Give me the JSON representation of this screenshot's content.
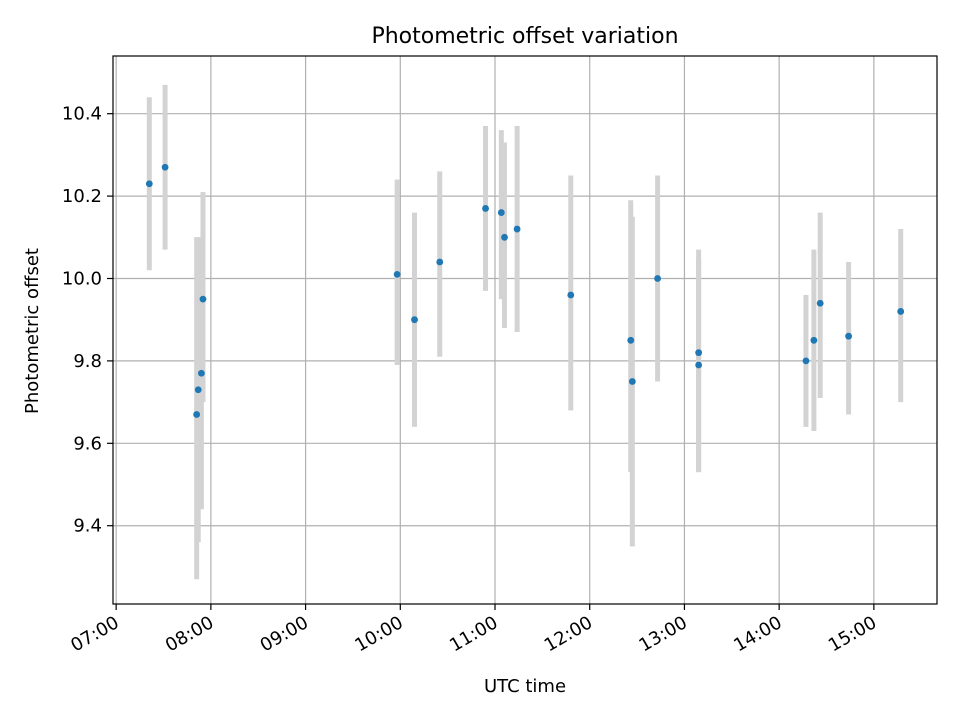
{
  "chart_data": {
    "type": "scatter",
    "title": "Photometric offset variation",
    "xlabel": "UTC time",
    "ylabel": "Photometric offset",
    "x_ticks": [
      "07:00",
      "08:00",
      "09:00",
      "10:00",
      "11:00",
      "12:00",
      "13:00",
      "14:00",
      "15:00"
    ],
    "xlim": [
      "06:58",
      "15:40"
    ],
    "y_ticks": [
      9.4,
      9.6,
      9.8,
      10.0,
      10.2,
      10.4
    ],
    "ylim": [
      9.21,
      10.54
    ],
    "grid": true,
    "colors": {
      "point": "#1f77b4",
      "errorbar": "#d3d3d3"
    },
    "points": [
      {
        "x": "07:21",
        "y": 10.23,
        "ylo": 10.02,
        "yhi": 10.44
      },
      {
        "x": "07:31",
        "y": 10.27,
        "ylo": 10.07,
        "yhi": 10.47
      },
      {
        "x": "07:51",
        "y": 9.67,
        "ylo": 9.27,
        "yhi": 10.1
      },
      {
        "x": "07:52",
        "y": 9.73,
        "ylo": 9.36,
        "yhi": 10.1
      },
      {
        "x": "07:54",
        "y": 9.77,
        "ylo": 9.44,
        "yhi": 10.1
      },
      {
        "x": "07:55",
        "y": 9.95,
        "ylo": 9.7,
        "yhi": 10.21
      },
      {
        "x": "09:58",
        "y": 10.01,
        "ylo": 9.79,
        "yhi": 10.24
      },
      {
        "x": "10:09",
        "y": 9.9,
        "ylo": 9.64,
        "yhi": 10.16
      },
      {
        "x": "10:25",
        "y": 10.04,
        "ylo": 9.81,
        "yhi": 10.26
      },
      {
        "x": "10:54",
        "y": 10.17,
        "ylo": 9.97,
        "yhi": 10.37
      },
      {
        "x": "11:04",
        "y": 10.16,
        "ylo": 9.95,
        "yhi": 10.36
      },
      {
        "x": "11:06",
        "y": 10.1,
        "ylo": 9.88,
        "yhi": 10.33
      },
      {
        "x": "11:14",
        "y": 10.12,
        "ylo": 9.87,
        "yhi": 10.37
      },
      {
        "x": "11:48",
        "y": 9.96,
        "ylo": 9.68,
        "yhi": 10.25
      },
      {
        "x": "12:26",
        "y": 9.85,
        "ylo": 9.53,
        "yhi": 10.19
      },
      {
        "x": "12:27",
        "y": 9.75,
        "ylo": 9.35,
        "yhi": 10.15
      },
      {
        "x": "12:43",
        "y": 10.0,
        "ylo": 9.75,
        "yhi": 10.25
      },
      {
        "x": "13:09",
        "y": 9.82,
        "ylo": 9.53,
        "yhi": 10.07
      },
      {
        "x": "13:09",
        "y": 9.79,
        "ylo": 9.53,
        "yhi": 10.05
      },
      {
        "x": "14:17",
        "y": 9.8,
        "ylo": 9.64,
        "yhi": 9.96
      },
      {
        "x": "14:22",
        "y": 9.85,
        "ylo": 9.63,
        "yhi": 10.07
      },
      {
        "x": "14:26",
        "y": 9.94,
        "ylo": 9.71,
        "yhi": 10.16
      },
      {
        "x": "14:44",
        "y": 9.86,
        "ylo": 9.67,
        "yhi": 10.04
      },
      {
        "x": "15:17",
        "y": 9.92,
        "ylo": 9.7,
        "yhi": 10.12
      }
    ]
  }
}
